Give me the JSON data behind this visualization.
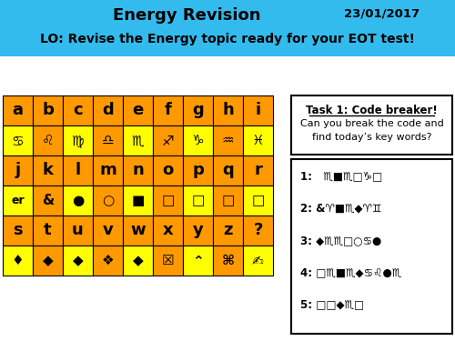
{
  "title": "Energy Revision",
  "date": "23/01/2017",
  "lo": "LO: Revise the Energy topic ready for your EOT test!",
  "header_bg": "#33BBEE",
  "orange": "#FF9900",
  "yellow": "#FFFF00",
  "white": "#FFFFFF",
  "black": "#000000",
  "task_title": "Task 1: Code breaker!",
  "task_text": "Can you break the code and\nfind today’s key words?",
  "clues": [
    "1:   ♏■♏□♑□",
    "2: &♈■♏◆♈♊",
    "3: ◆♏♏□○♋●",
    "4: □♏■♏◆♋♌●♏",
    "5: □□◆♏□"
  ],
  "rows": [
    {
      "labels": [
        "a",
        "b",
        "c",
        "d",
        "e",
        "f",
        "g",
        "h",
        "i"
      ],
      "type": "letter"
    },
    {
      "labels": [
        "♋",
        "♌",
        "♍",
        "♎",
        "♏",
        "♐",
        "♑",
        "♒",
        "♓"
      ],
      "type": "symbol"
    },
    {
      "labels": [
        "j",
        "k",
        "l",
        "m",
        "n",
        "o",
        "p",
        "q",
        "r"
      ],
      "type": "letter"
    },
    {
      "labels": [
        "er",
        "&",
        "●",
        "○",
        "■",
        "□",
        "□",
        "□",
        "□"
      ],
      "type": "symbol"
    },
    {
      "labels": [
        "s",
        "t",
        "u",
        "v",
        "w",
        "x",
        "y",
        "z",
        "?"
      ],
      "type": "letter"
    },
    {
      "labels": [
        "♦",
        "◆",
        "◆",
        "❖",
        "◆",
        "☒",
        "⌃",
        "⌘",
        "✍"
      ],
      "type": "symbol"
    }
  ]
}
